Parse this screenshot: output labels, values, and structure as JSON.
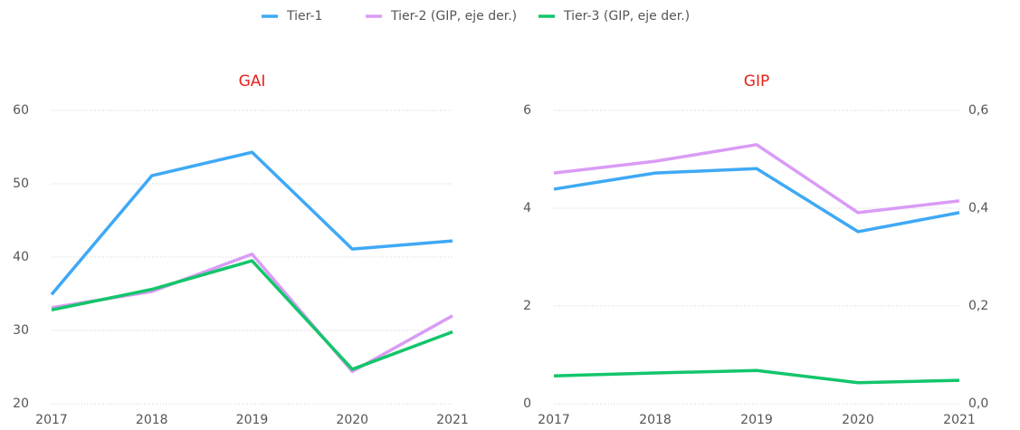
{
  "chart_data": [
    {
      "type": "line",
      "title": "GAI",
      "categories": [
        "2017",
        "2018",
        "2019",
        "2020",
        "2021"
      ],
      "ylim": [
        20,
        60
      ],
      "yticks": [
        20,
        30,
        40,
        50,
        60
      ],
      "grid": true,
      "series": [
        {
          "color": "#3fa9f5",
          "values": [
            34.9,
            51.1,
            54.3,
            41.1,
            42.2
          ]
        },
        {
          "color": "#d99cf5",
          "values": [
            33.1,
            35.3,
            40.4,
            24.4,
            32.0
          ]
        },
        {
          "color": "#13c56b",
          "values": [
            32.8,
            35.6,
            39.5,
            24.7,
            29.8
          ]
        }
      ]
    },
    {
      "type": "line",
      "title": "GIP",
      "categories": [
        "2017",
        "2018",
        "2019",
        "2020",
        "2021"
      ],
      "ylim": [
        0,
        6
      ],
      "yticks": [
        0,
        2,
        4,
        6
      ],
      "y2lim": [
        0,
        0.6
      ],
      "y2ticks": [
        {
          "value": 0,
          "label": "0,0"
        },
        {
          "value": 0.2,
          "label": "0,2"
        },
        {
          "value": 0.4,
          "label": "0,4"
        },
        {
          "value": 0.6,
          "label": "0,6"
        }
      ],
      "grid": true,
      "legend": "top",
      "series": [
        {
          "name": "Tier-1",
          "color": "#3fa9f5",
          "values": [
            4.39,
            4.72,
            4.81,
            3.52,
            3.91
          ]
        },
        {
          "name": "Tier-2 (GIP, eje der.)",
          "color": "#d99cf5",
          "axis": "y2",
          "values": [
            0.472,
            0.496,
            0.53,
            0.391,
            0.415
          ]
        },
        {
          "name": "Tier-3 (GIP, eje der.)",
          "color": "#13c56b",
          "axis": "y2",
          "values": [
            0.057,
            0.063,
            0.068,
            0.043,
            0.048
          ]
        }
      ]
    }
  ]
}
